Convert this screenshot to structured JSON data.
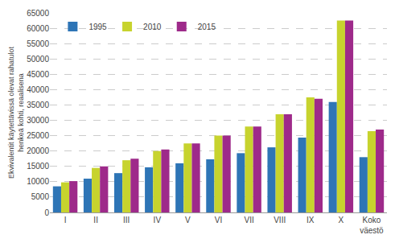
{
  "chart_data": {
    "type": "bar",
    "categories": [
      "I",
      "II",
      "III",
      "IV",
      "V",
      "VI",
      "VII",
      "VIII",
      "IX",
      "X",
      "Koko\nväestö"
    ],
    "series": [
      {
        "name": "1995",
        "color": "#2e75b6",
        "values": [
          8500,
          11000,
          12800,
          14700,
          16000,
          17300,
          19300,
          21200,
          24400,
          36000,
          18000
        ]
      },
      {
        "name": "2010",
        "color": "#c7d32e",
        "values": [
          9800,
          14500,
          17000,
          20000,
          22500,
          25000,
          28000,
          32000,
          37500,
          62500,
          26500
        ]
      },
      {
        "name": "2015",
        "color": "#9e2a8a",
        "values": [
          10200,
          15000,
          17500,
          20500,
          22500,
          25000,
          28000,
          32000,
          37000,
          62500,
          27000
        ]
      }
    ],
    "ylabel": "Ekvivalentit käytettävissä olevat rahatulot\nhenkeä kohti, reaalisena",
    "ylim": [
      0,
      65000
    ],
    "yticks": [
      0,
      5000,
      10000,
      15000,
      20000,
      25000,
      30000,
      35000,
      40000,
      45000,
      50000,
      55000,
      60000,
      65000
    ],
    "grid": true,
    "legend": "upper left"
  }
}
